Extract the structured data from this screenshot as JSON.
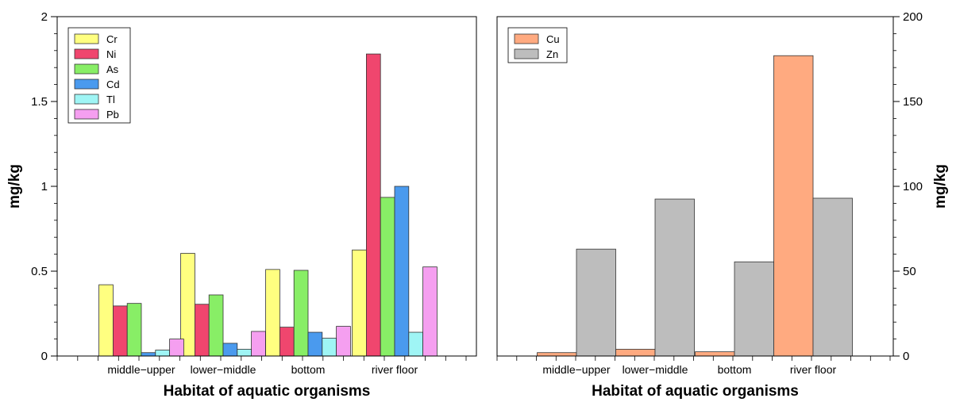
{
  "colors": {
    "Cr": "#ffff80",
    "Ni": "#f0466e",
    "As": "#88ee66",
    "Cd": "#4a9aee",
    "Tl": "#9ff5f5",
    "Pb": "#f59ff0",
    "Cu": "#ffaa80",
    "Zn": "#bdbdbd"
  },
  "chart_data": [
    {
      "type": "bar",
      "categories": [
        "middle−upper",
        "lower−middle",
        "bottom",
        "river floor"
      ],
      "series": [
        {
          "name": "Cr",
          "values": [
            0.42,
            0.605,
            0.51,
            0.625
          ]
        },
        {
          "name": "Ni",
          "values": [
            0.295,
            0.305,
            0.17,
            1.78
          ]
        },
        {
          "name": "As",
          "values": [
            0.31,
            0.36,
            0.505,
            0.935
          ]
        },
        {
          "name": "Cd",
          "values": [
            0.02,
            0.075,
            0.14,
            1.0
          ]
        },
        {
          "name": "Tl",
          "values": [
            0.035,
            0.04,
            0.105,
            0.14
          ]
        },
        {
          "name": "Pb",
          "values": [
            0.1,
            0.145,
            0.175,
            0.525
          ]
        }
      ],
      "xlabel": "Habitat of aquatic organisms",
      "ylabel": "mg/kg",
      "ylim": [
        0,
        2
      ],
      "yticks": [
        "0",
        "0.5",
        "1",
        "1.5",
        "2"
      ],
      "legend": "top-left",
      "grid": false
    },
    {
      "type": "bar",
      "categories": [
        "middle−upper",
        "lower−middle",
        "bottom",
        "river floor"
      ],
      "series": [
        {
          "name": "Cu",
          "values": [
            2.0,
            4.0,
            2.5,
            177
          ]
        },
        {
          "name": "Zn",
          "values": [
            63,
            92.5,
            55.5,
            93
          ]
        }
      ],
      "xlabel": "Habitat of aquatic organisms",
      "ylabel": "mg/kg",
      "ylim": [
        0,
        200
      ],
      "yticks": [
        "0",
        "50",
        "100",
        "150",
        "200"
      ],
      "legend": "top-left",
      "grid": false
    }
  ]
}
